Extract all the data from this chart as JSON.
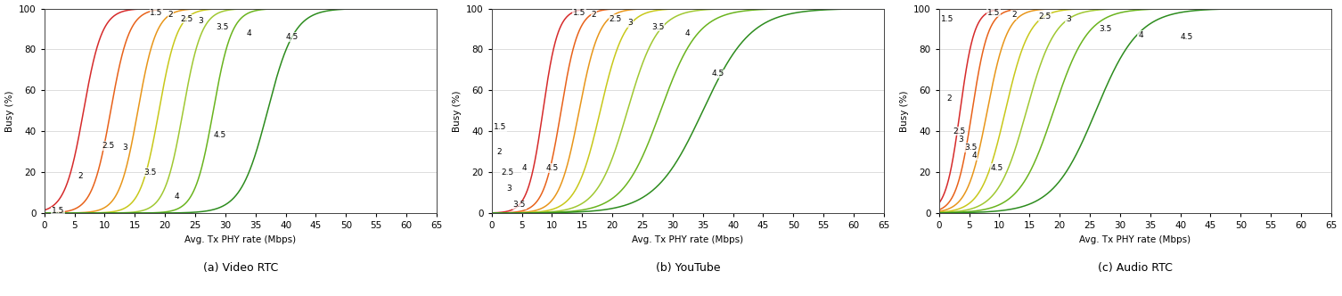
{
  "subplots": [
    {
      "title": "(a) Video RTC",
      "qoe_labels": [
        "1.5",
        "2",
        "2.5",
        "3",
        "3.5",
        "4",
        "4.5"
      ],
      "colors": [
        "#d62b2b",
        "#e8621a",
        "#e8961a",
        "#c8c81a",
        "#a0c832",
        "#6ab41e",
        "#2d8c1e"
      ],
      "midpoints": [
        6.5,
        11.0,
        15.5,
        19.0,
        23.0,
        28.0,
        37.0
      ],
      "steepness": [
        0.65,
        0.65,
        0.65,
        0.65,
        0.65,
        0.65,
        0.45
      ],
      "label_x_low": [
        1.2,
        5.5,
        9.5,
        13.0,
        16.5,
        21.5,
        28.0
      ],
      "label_y_low": [
        1,
        18,
        33,
        32,
        20,
        8,
        38
      ],
      "label_x_mid": [
        17.5,
        20.5,
        22.5,
        25.5,
        28.5,
        33.5,
        40.0
      ],
      "label_y_mid": [
        98,
        97,
        95,
        94,
        91,
        88,
        86
      ]
    },
    {
      "title": "(b) YouTube",
      "qoe_labels": [
        "1.5",
        "2",
        "2.5",
        "3",
        "3.5",
        "4",
        "4.5"
      ],
      "colors": [
        "#d62b2b",
        "#e8621a",
        "#e8961a",
        "#c8c81a",
        "#a0c832",
        "#6ab41e",
        "#2d8c1e"
      ],
      "midpoints": [
        8.5,
        11.5,
        14.5,
        18.0,
        22.5,
        28.0,
        35.0
      ],
      "steepness": [
        0.8,
        0.7,
        0.6,
        0.5,
        0.4,
        0.32,
        0.25
      ],
      "label_x_low": [
        0.3,
        0.8,
        1.5,
        2.5,
        3.5,
        5.0,
        9.0
      ],
      "label_y_low": [
        42,
        30,
        20,
        12,
        4,
        22,
        22
      ],
      "label_x_mid": [
        13.5,
        16.5,
        19.5,
        22.5,
        26.5,
        32.0,
        36.5
      ],
      "label_y_mid": [
        98,
        97,
        95,
        93,
        91,
        88,
        68
      ]
    },
    {
      "title": "(c) Audio RTC",
      "qoe_labels": [
        "1.5",
        "2",
        "2.5",
        "3",
        "3.5",
        "4",
        "4.5"
      ],
      "colors": [
        "#d62b2b",
        "#e8621a",
        "#e8961a",
        "#c8c81a",
        "#a0c832",
        "#6ab41e",
        "#2d8c1e"
      ],
      "midpoints": [
        3.5,
        5.5,
        8.0,
        11.0,
        14.5,
        19.0,
        26.0
      ],
      "steepness": [
        0.85,
        0.75,
        0.6,
        0.5,
        0.42,
        0.35,
        0.28
      ],
      "label_x_low": [
        0.3,
        1.2,
        2.3,
        3.2,
        4.2,
        5.5,
        8.5
      ],
      "label_y_low": [
        95,
        56,
        40,
        36,
        32,
        28,
        22
      ],
      "label_x_mid": [
        8.0,
        12.0,
        16.5,
        21.0,
        26.5,
        33.0,
        40.0
      ],
      "label_y_mid": [
        98,
        97,
        96,
        95,
        90,
        87,
        86
      ]
    }
  ],
  "xlabel": "Avg. Tx PHY rate (Mbps)",
  "ylabel": "Busy (%)",
  "xlim": [
    0,
    65
  ],
  "ylim": [
    0,
    100
  ],
  "xticks": [
    0,
    5,
    10,
    15,
    20,
    25,
    30,
    35,
    40,
    45,
    50,
    55,
    60,
    65
  ],
  "yticks": [
    0,
    20,
    40,
    60,
    80,
    100
  ],
  "fontsize_label": 7.5,
  "fontsize_annot": 6.5,
  "fontsize_title": 9,
  "background_color": "#ffffff"
}
